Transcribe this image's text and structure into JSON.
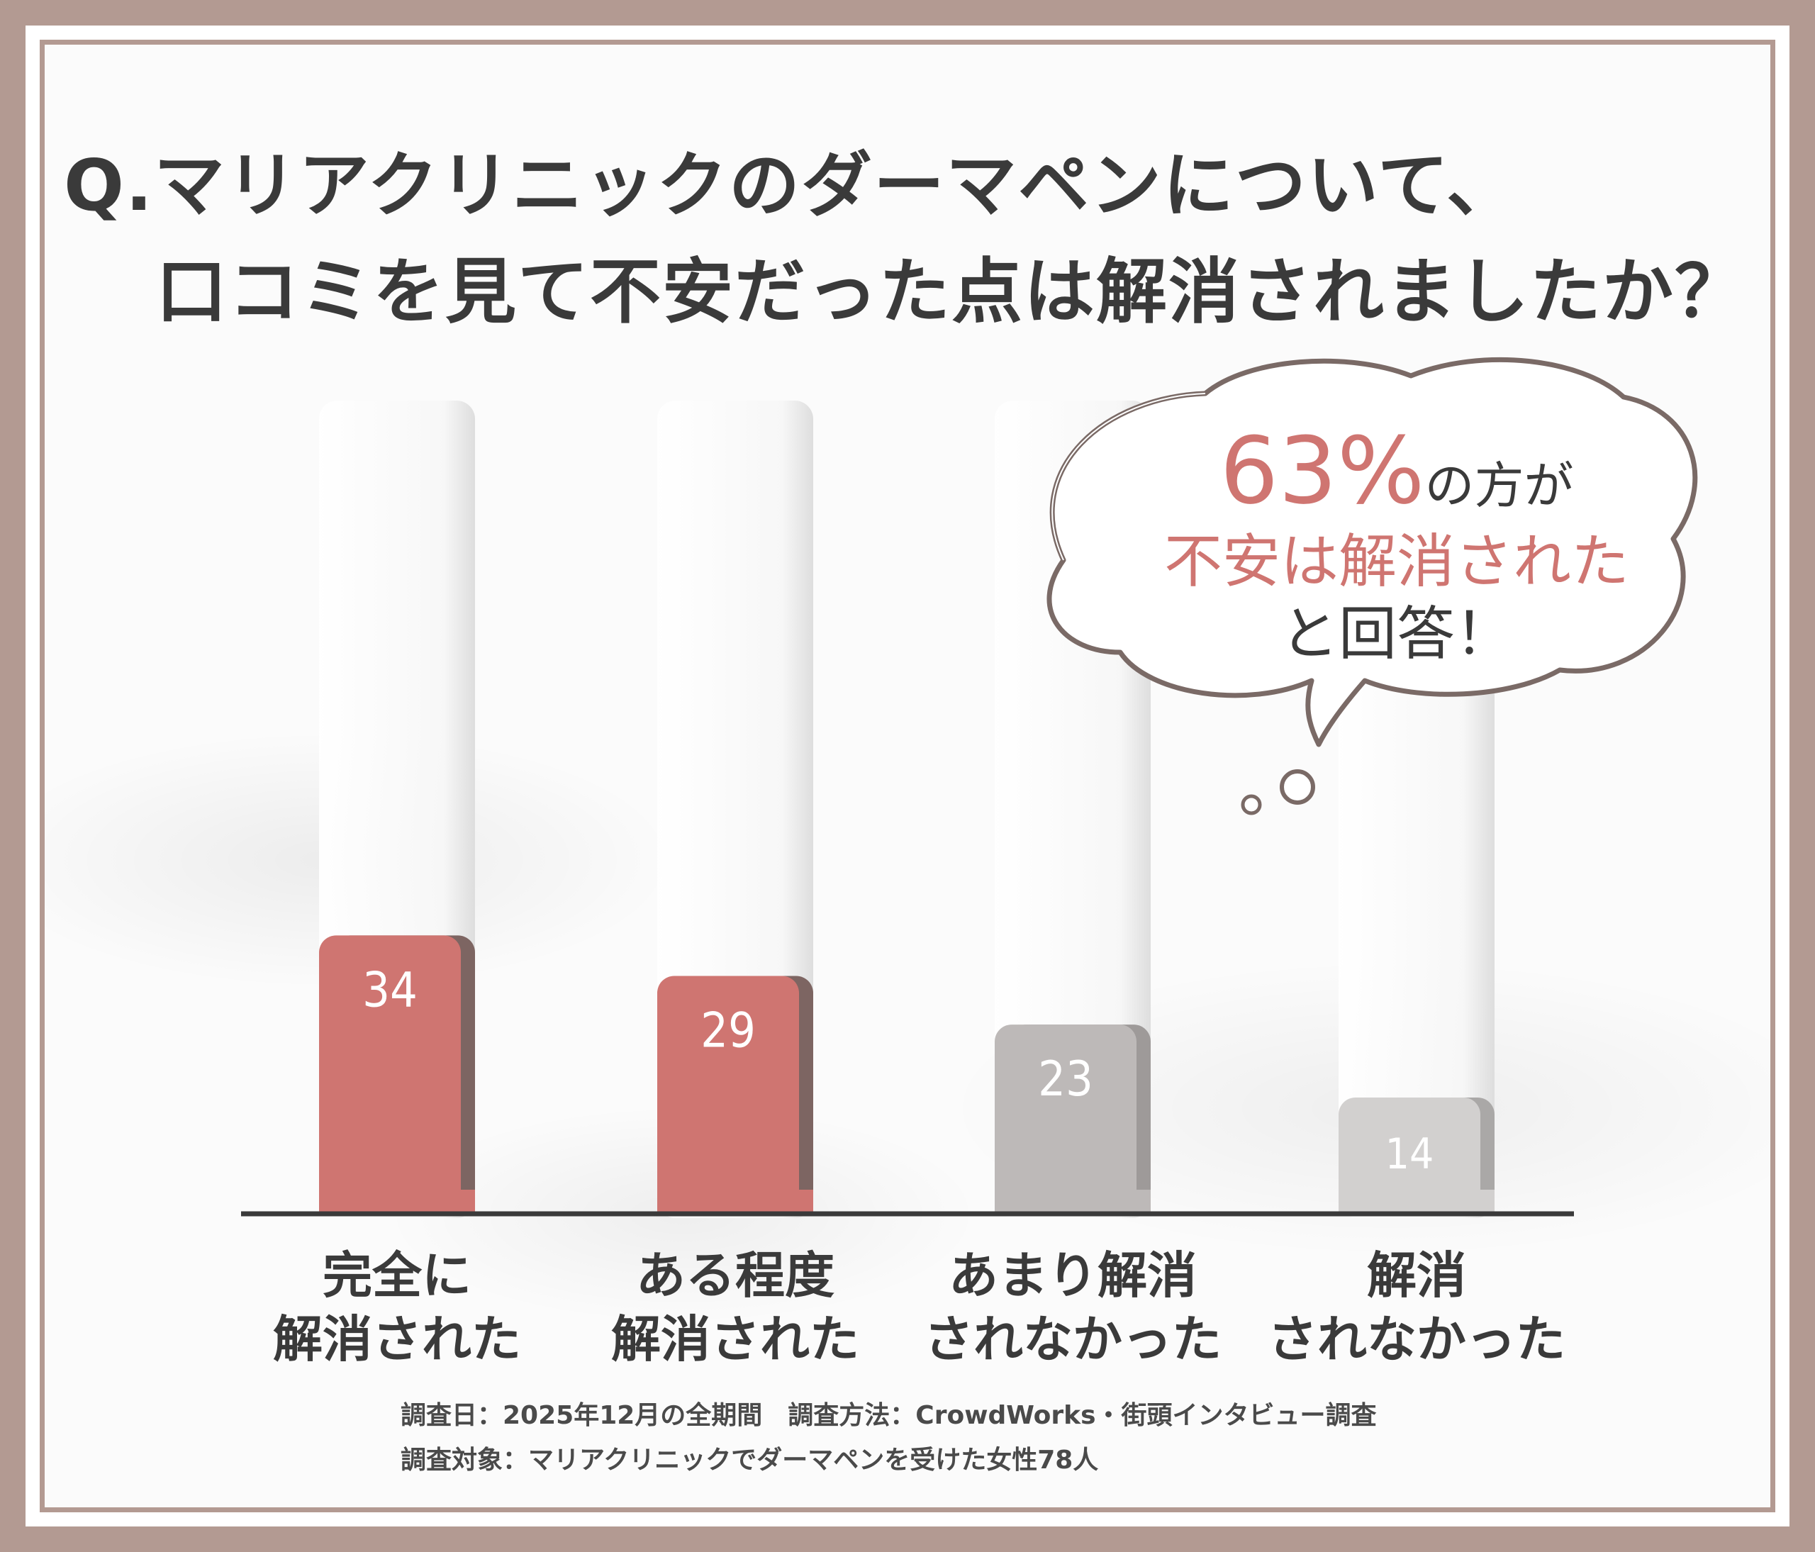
{
  "title": {
    "line1": "Q.マリアクリニックのダーマペンについて、",
    "line2": "口コミを見て不安だった点は解消されましたか？"
  },
  "callout": {
    "percent": "63%",
    "suffix": "の方が",
    "line2": "不安は解消された",
    "line3": "と回答！"
  },
  "chart_data": {
    "type": "bar",
    "categories": [
      [
        "完全に",
        "解消された"
      ],
      [
        "ある程度",
        "解消された"
      ],
      [
        "あまり解消",
        "されなかった"
      ],
      [
        "解消",
        "されなかった"
      ]
    ],
    "values": [
      34,
      29,
      23,
      14
    ],
    "value_labels": [
      "34",
      "29",
      "23",
      "14"
    ],
    "ylim": [
      0,
      100
    ],
    "grid": false,
    "legend": "none",
    "colors": [
      "#cf7571",
      "#cf7571",
      "#bdb9b8",
      "#d2d0cf"
    ],
    "title": "",
    "xlabel": "",
    "ylabel": ""
  },
  "notes": {
    "line1": "調査日：2025年12月の全期間　調査方法：CrowdWorks・街頭インタビュー調査",
    "line2": "調査対象：マリアクリニックでダーマペンを受けた女性78人"
  },
  "colors": {
    "frame": "#b39a92",
    "accent": "#cf7571",
    "text": "#3a3a3a"
  }
}
